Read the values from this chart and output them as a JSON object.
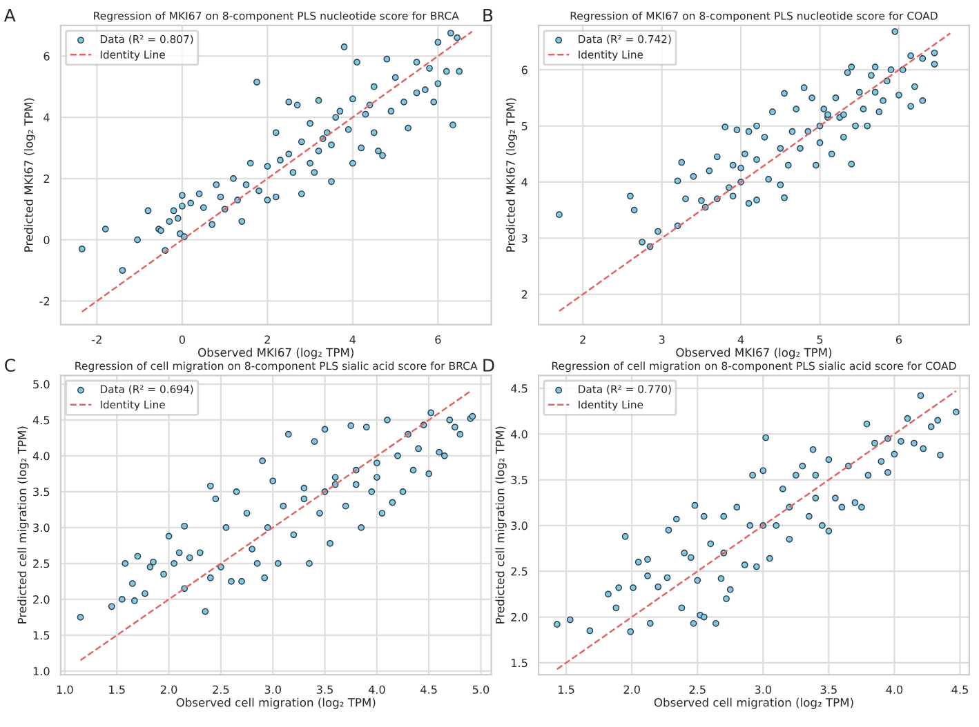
{
  "chart_data": [
    {
      "type": "scatter",
      "title": "Regression of MKI67 on 8-component PLS nucleotide score for BRCA",
      "xlabel": "Observed MKI67 (log₂ TPM)",
      "ylabel": "Predicted MKI67 (log₂ TPM)",
      "annotations": [
        "A"
      ],
      "xlim": [
        -2.85,
        7.25
      ],
      "ylim": [
        -2.77,
        7.0
      ],
      "xticks": [
        -2,
        0,
        2,
        4,
        6
      ],
      "yticks": [
        -2,
        0,
        2,
        4,
        6
      ],
      "grid": true,
      "legend": "top left",
      "series": [
        {
          "name": "Data (R² = 0.807)",
          "marker": "circle",
          "color": "#87c6dc",
          "x": [
            -2.35,
            -1.8,
            -1.4,
            -1.05,
            -0.8,
            -0.55,
            -0.5,
            -0.4,
            -0.3,
            -0.2,
            -0.1,
            -0.05,
            0.0,
            0.0,
            0.05,
            0.2,
            0.4,
            0.5,
            0.7,
            0.8,
            1.0,
            1.2,
            1.3,
            1.4,
            1.6,
            1.75,
            1.8,
            2.0,
            2.0,
            2.2,
            2.2,
            2.5,
            2.5,
            2.7,
            2.8,
            2.8,
            3.0,
            3.0,
            3.2,
            3.2,
            3.4,
            3.5,
            3.5,
            3.7,
            3.8,
            3.9,
            4.0,
            4.0,
            4.1,
            4.2,
            4.3,
            4.5,
            4.5,
            4.6,
            4.7,
            4.8,
            4.9,
            5.0,
            5.2,
            5.3,
            5.5,
            5.5,
            5.7,
            5.8,
            5.9,
            6.0,
            6.0,
            6.2,
            6.3,
            6.35,
            6.45,
            6.5,
            2.6,
            3.3,
            3.6,
            4.4,
            2.3,
            3.1,
            1.5,
            0.9
          ],
          "values": [
            -0.3,
            0.35,
            -1.0,
            0.0,
            0.95,
            0.35,
            0.3,
            -0.35,
            0.6,
            0.95,
            0.7,
            0.2,
            1.45,
            1.1,
            0.1,
            1.2,
            1.5,
            1.05,
            0.5,
            1.8,
            1.0,
            2.0,
            1.3,
            0.6,
            2.5,
            5.15,
            1.6,
            2.4,
            1.3,
            3.5,
            1.4,
            4.5,
            2.8,
            4.4,
            3.2,
            1.5,
            2.5,
            3.8,
            4.55,
            2.9,
            3.5,
            1.9,
            3.1,
            4.2,
            6.3,
            3.6,
            2.5,
            4.6,
            5.8,
            3.0,
            4.1,
            5.0,
            3.5,
            2.9,
            2.75,
            5.9,
            4.2,
            5.3,
            4.5,
            3.65,
            5.8,
            4.8,
            4.9,
            5.6,
            4.5,
            6.45,
            5.1,
            5.5,
            6.75,
            3.75,
            6.6,
            5.5,
            2.2,
            3.3,
            4.0,
            4.4,
            2.6,
            2.2,
            1.8,
            1.4
          ]
        },
        {
          "name": "Identity Line",
          "type": "line",
          "color": "#e06666",
          "line_style": "dashed",
          "x": [
            -2.35,
            6.8
          ],
          "values": [
            -2.35,
            6.8
          ]
        }
      ]
    },
    {
      "type": "scatter",
      "title": "Regression of MKI67 on 8-component PLS nucleotide score for COAD",
      "xlabel": "Observed MKI67 (log₂ TPM)",
      "ylabel": "Predicted MKI67 (log₂ TPM)",
      "annotations": [
        "B"
      ],
      "xlim": [
        1.44,
        6.89
      ],
      "ylim": [
        1.46,
        6.79
      ],
      "xticks": [
        2,
        3,
        4,
        5,
        6
      ],
      "yticks": [
        2,
        3,
        4,
        5,
        6
      ],
      "grid": true,
      "legend": "top left",
      "series": [
        {
          "name": "Data (R² = 0.742)",
          "marker": "circle",
          "color": "#87c6dc",
          "x": [
            1.7,
            2.6,
            2.65,
            2.75,
            2.85,
            2.95,
            3.2,
            3.2,
            3.25,
            3.3,
            3.4,
            3.5,
            3.55,
            3.6,
            3.7,
            3.7,
            3.8,
            3.85,
            3.9,
            3.9,
            3.95,
            4.0,
            4.05,
            4.1,
            4.1,
            4.2,
            4.2,
            4.2,
            4.3,
            4.35,
            4.4,
            4.5,
            4.5,
            4.55,
            4.55,
            4.6,
            4.7,
            4.75,
            4.8,
            4.85,
            4.9,
            4.95,
            5.0,
            5.0,
            5.05,
            5.1,
            5.15,
            5.2,
            5.25,
            5.3,
            5.35,
            5.4,
            5.4,
            5.45,
            5.5,
            5.55,
            5.6,
            5.65,
            5.7,
            5.7,
            5.75,
            5.8,
            5.85,
            5.9,
            5.95,
            6.0,
            6.05,
            6.15,
            6.15,
            6.2,
            6.3,
            6.3,
            6.45,
            6.45,
            4.65,
            5.1,
            5.3,
            4.0
          ],
          "values": [
            3.42,
            3.75,
            3.5,
            2.93,
            2.85,
            3.12,
            3.22,
            4.02,
            4.35,
            3.7,
            4.1,
            3.67,
            3.55,
            4.2,
            4.45,
            3.7,
            4.98,
            3.9,
            4.3,
            3.75,
            4.93,
            4.0,
            4.5,
            3.62,
            4.9,
            5.0,
            4.4,
            3.68,
            4.8,
            4.05,
            5.25,
            4.6,
            3.95,
            5.58,
            3.72,
            4.3,
            5.3,
            4.6,
            5.68,
            4.9,
            5.5,
            4.3,
            5.0,
            4.7,
            5.3,
            5.15,
            4.5,
            5.5,
            5.15,
            4.8,
            5.95,
            4.32,
            6.05,
            5.0,
            5.6,
            5.3,
            5.0,
            5.9,
            5.6,
            6.05,
            5.25,
            5.45,
            5.8,
            6.0,
            6.68,
            5.55,
            6.0,
            6.25,
            5.35,
            5.7,
            6.2,
            5.45,
            6.3,
            6.1,
            4.9,
            5.2,
            5.2,
            4.25
          ]
        },
        {
          "name": "Identity Line",
          "type": "line",
          "color": "#e06666",
          "line_style": "dashed",
          "x": [
            1.7,
            6.65
          ],
          "values": [
            1.7,
            6.65
          ]
        }
      ]
    },
    {
      "type": "scatter",
      "title": "Regression of cell migration on 8-component PLS sialic acid score for BRCA",
      "xlabel": "Observed cell migration (log₂ TPM)",
      "ylabel": "Predicted cell migration (log₂ TPM)",
      "annotations": [
        "C"
      ],
      "xlim": [
        0.96,
        5.1
      ],
      "ylim": [
        0.95,
        5.12
      ],
      "xticks": [
        {
          "value": 1.0,
          "label": "1.0"
        },
        {
          "value": 1.5,
          "label": "1.5"
        },
        {
          "value": 2.0,
          "label": "2.0"
        },
        {
          "value": 2.5,
          "label": "2.5"
        },
        {
          "value": 3.0,
          "label": "3.0"
        },
        {
          "value": 3.5,
          "label": "3.5"
        },
        {
          "value": 4.0,
          "label": "4.0"
        },
        {
          "value": 4.5,
          "label": "4.5"
        },
        {
          "value": 5.0,
          "label": "5.0"
        }
      ],
      "yticks": [
        {
          "value": 1.0,
          "label": "1.0"
        },
        {
          "value": 1.5,
          "label": "1.5"
        },
        {
          "value": 2.0,
          "label": "2.0"
        },
        {
          "value": 2.5,
          "label": "2.5"
        },
        {
          "value": 3.0,
          "label": "3.0"
        },
        {
          "value": 3.5,
          "label": "3.5"
        },
        {
          "value": 4.0,
          "label": "4.0"
        },
        {
          "value": 4.5,
          "label": "4.5"
        },
        {
          "value": 5.0,
          "label": "5.0"
        }
      ],
      "grid": true,
      "legend": "top left",
      "series": [
        {
          "name": "Data (R² = 0.694)",
          "marker": "circle",
          "color": "#87c6dc",
          "x": [
            1.15,
            1.45,
            1.55,
            1.58,
            1.65,
            1.67,
            1.7,
            1.77,
            1.82,
            1.85,
            1.95,
            2.0,
            2.05,
            2.1,
            2.15,
            2.15,
            2.2,
            2.3,
            2.35,
            2.4,
            2.4,
            2.45,
            2.5,
            2.55,
            2.6,
            2.65,
            2.7,
            2.75,
            2.8,
            2.85,
            2.9,
            2.92,
            2.95,
            3.0,
            3.05,
            3.1,
            3.15,
            3.2,
            3.3,
            3.35,
            3.4,
            3.45,
            3.5,
            3.55,
            3.6,
            3.7,
            3.75,
            3.8,
            3.85,
            3.9,
            3.95,
            4.0,
            4.05,
            4.1,
            4.15,
            4.2,
            4.25,
            4.3,
            4.35,
            4.4,
            4.45,
            4.5,
            4.52,
            4.6,
            4.7,
            4.75,
            4.8,
            4.9,
            4.92,
            4.65,
            3.6,
            3.3,
            3.8,
            4.0,
            3.5
          ],
          "values": [
            1.75,
            1.9,
            2.0,
            2.5,
            2.22,
            1.98,
            2.6,
            2.08,
            2.45,
            2.52,
            2.35,
            2.88,
            2.5,
            2.65,
            2.15,
            3.02,
            2.58,
            2.65,
            1.83,
            3.58,
            2.3,
            3.4,
            2.45,
            3.0,
            2.25,
            3.5,
            2.25,
            3.2,
            2.7,
            2.5,
            3.93,
            2.3,
            3.0,
            3.65,
            2.5,
            3.3,
            4.3,
            2.9,
            3.55,
            2.5,
            4.2,
            3.2,
            4.37,
            2.78,
            3.6,
            3.3,
            4.42,
            3.8,
            3.0,
            4.4,
            3.5,
            3.9,
            3.2,
            4.5,
            3.35,
            4.0,
            3.5,
            4.3,
            3.8,
            4.1,
            4.43,
            3.75,
            4.6,
            4.05,
            4.5,
            4.4,
            4.3,
            4.52,
            4.55,
            4.0,
            3.7,
            3.4,
            3.6,
            3.7,
            3.5
          ]
        },
        {
          "name": "Identity Line",
          "type": "line",
          "color": "#e06666",
          "line_style": "dashed",
          "x": [
            1.15,
            4.9
          ],
          "values": [
            1.15,
            4.9
          ]
        }
      ]
    },
    {
      "type": "scatter",
      "title": "Regression of cell migration on 8-component PLS sialic acid score for COAD",
      "xlabel": "Observed cell migration (log₂ TPM)",
      "ylabel": "Predicted cell migration (log₂ TPM)",
      "annotations": [
        "D"
      ],
      "xlim": [
        1.29,
        4.57
      ],
      "ylim": [
        1.37,
        4.64
      ],
      "xticks": [
        {
          "value": 1.5,
          "label": "1.5"
        },
        {
          "value": 2.0,
          "label": "2.0"
        },
        {
          "value": 2.5,
          "label": "2.5"
        },
        {
          "value": 3.0,
          "label": "3.0"
        },
        {
          "value": 3.5,
          "label": "3.5"
        },
        {
          "value": 4.0,
          "label": "4.0"
        },
        {
          "value": 4.5,
          "label": "4.5"
        }
      ],
      "yticks": [
        {
          "value": 1.5,
          "label": "1.5"
        },
        {
          "value": 2.0,
          "label": "2.0"
        },
        {
          "value": 2.5,
          "label": "2.5"
        },
        {
          "value": 3.0,
          "label": "3.0"
        },
        {
          "value": 3.5,
          "label": "3.5"
        },
        {
          "value": 4.0,
          "label": "4.0"
        },
        {
          "value": 4.5,
          "label": "4.5"
        }
      ],
      "grid": true,
      "legend": "top left",
      "series": [
        {
          "name": "Data (R² = 0.770)",
          "marker": "circle",
          "color": "#87c6dc",
          "x": [
            1.43,
            1.53,
            1.68,
            1.82,
            1.88,
            1.9,
            1.95,
            1.99,
            2.01,
            2.05,
            2.12,
            2.12,
            2.14,
            2.2,
            2.27,
            2.28,
            2.34,
            2.38,
            2.4,
            2.45,
            2.47,
            2.48,
            2.5,
            2.52,
            2.55,
            2.55,
            2.6,
            2.64,
            2.68,
            2.7,
            2.72,
            2.75,
            2.8,
            2.86,
            2.9,
            2.92,
            2.95,
            3.0,
            3.02,
            3.05,
            3.1,
            3.15,
            3.2,
            3.25,
            3.3,
            3.35,
            3.38,
            3.4,
            3.45,
            3.5,
            3.5,
            3.55,
            3.6,
            3.65,
            3.7,
            3.75,
            3.79,
            3.8,
            3.85,
            3.9,
            3.95,
            3.95,
            4.0,
            4.05,
            4.1,
            4.15,
            4.2,
            4.22,
            4.28,
            4.33,
            4.35,
            4.47,
            3.2,
            3.4,
            3.0,
            2.7
          ],
          "values": [
            1.92,
            1.97,
            1.85,
            2.25,
            2.1,
            2.32,
            2.88,
            1.84,
            2.32,
            2.6,
            2.45,
            2.63,
            1.93,
            2.33,
            2.43,
            2.95,
            3.07,
            2.1,
            2.7,
            2.65,
            1.93,
            3.22,
            2.4,
            2.02,
            2.0,
            3.1,
            2.8,
            1.93,
            2.42,
            3.1,
            2.2,
            2.3,
            3.2,
            2.57,
            3.0,
            3.55,
            2.55,
            3.6,
            3.96,
            2.64,
            3.0,
            3.4,
            2.85,
            3.55,
            3.65,
            3.1,
            3.83,
            3.55,
            3.0,
            2.94,
            3.72,
            3.3,
            3.2,
            3.65,
            3.25,
            3.2,
            4.11,
            3.55,
            3.9,
            3.7,
            3.95,
            3.58,
            3.78,
            3.92,
            4.17,
            3.9,
            4.42,
            3.84,
            4.08,
            4.15,
            3.77,
            4.24,
            3.2,
            3.3,
            3.0,
            2.7
          ]
        },
        {
          "name": "Identity Line",
          "type": "line",
          "color": "#e06666",
          "line_style": "dashed",
          "x": [
            1.43,
            4.47
          ],
          "values": [
            1.43,
            4.47
          ]
        }
      ]
    }
  ]
}
